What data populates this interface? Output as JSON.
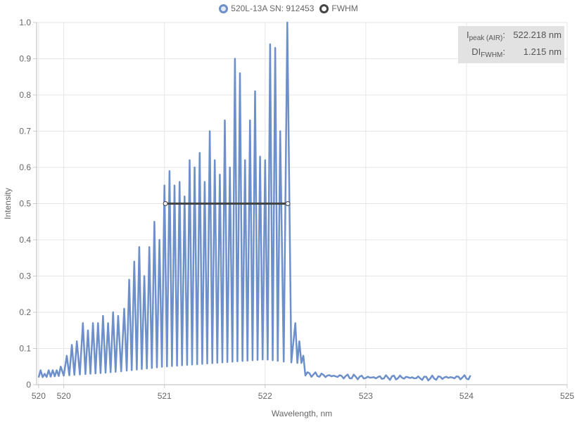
{
  "legend": {
    "series_label": "520L-13A SN: 912453",
    "fwhm_label": "FWHM"
  },
  "info": {
    "peak_key_main": "I",
    "peak_key_sub": "peak (AIR)",
    "peak_value": "522.218 nm",
    "fwhm_key_main": "DI",
    "fwhm_key_sub": "FWHM",
    "fwhm_value": "1.215 nm"
  },
  "colors": {
    "series": "#6d8fca",
    "fwhm": "#444444",
    "grid": "#e6e6e6",
    "info_bg": "#e2e2e2"
  },
  "chart_data": {
    "type": "line",
    "title": "",
    "xlabel": "Wavelength, nm",
    "ylabel": "Intensity",
    "xlim": [
      519.73,
      525
    ],
    "ylim": [
      0,
      1.0
    ],
    "x_ticks": [
      {
        "value": 519.75,
        "label": "520"
      },
      {
        "value": 520,
        "label": "520"
      },
      {
        "value": 521,
        "label": "521"
      },
      {
        "value": 522,
        "label": "522"
      },
      {
        "value": 523,
        "label": "523"
      },
      {
        "value": 524,
        "label": "524"
      },
      {
        "value": 525,
        "label": "525"
      }
    ],
    "y_ticks": [
      "0",
      "0.1",
      "0.2",
      "0.3",
      "0.4",
      "0.5",
      "0.6",
      "0.7",
      "0.8",
      "0.9",
      "1.0"
    ],
    "grid": true,
    "legend_position": "top",
    "series": [
      {
        "name": "520L-13A SN: 912453",
        "note": "oscillating spectrum; peak maxima listed as [wavelength_nm, intensity]",
        "baseline": [
          [
            519.75,
            0.02
          ],
          [
            520.5,
            0.035
          ],
          [
            521.0,
            0.05
          ],
          [
            521.5,
            0.06
          ],
          [
            522.0,
            0.07
          ],
          [
            522.3,
            0.06
          ]
        ],
        "peaks": [
          [
            519.77,
            0.04
          ],
          [
            519.81,
            0.03
          ],
          [
            519.85,
            0.04
          ],
          [
            519.89,
            0.04
          ],
          [
            519.93,
            0.04
          ],
          [
            519.97,
            0.05
          ],
          [
            520.03,
            0.08
          ],
          [
            520.08,
            0.11
          ],
          [
            520.13,
            0.12
          ],
          [
            520.19,
            0.17
          ],
          [
            520.24,
            0.15
          ],
          [
            520.29,
            0.17
          ],
          [
            520.34,
            0.17
          ],
          [
            520.39,
            0.19
          ],
          [
            520.44,
            0.17
          ],
          [
            520.49,
            0.2
          ],
          [
            520.54,
            0.19
          ],
          [
            520.6,
            0.21
          ],
          [
            520.65,
            0.29
          ],
          [
            520.7,
            0.34
          ],
          [
            520.75,
            0.38
          ],
          [
            520.8,
            0.3
          ],
          [
            520.85,
            0.38
          ],
          [
            520.9,
            0.45
          ],
          [
            520.95,
            0.4
          ],
          [
            521.0,
            0.55
          ],
          [
            521.05,
            0.59
          ],
          [
            521.1,
            0.55
          ],
          [
            521.15,
            0.56
          ],
          [
            521.2,
            0.52
          ],
          [
            521.25,
            0.62
          ],
          [
            521.3,
            0.6
          ],
          [
            521.35,
            0.64
          ],
          [
            521.4,
            0.56
          ],
          [
            521.45,
            0.7
          ],
          [
            521.5,
            0.62
          ],
          [
            521.55,
            0.58
          ],
          [
            521.6,
            0.73
          ],
          [
            521.65,
            0.6
          ],
          [
            521.7,
            0.9
          ],
          [
            521.75,
            0.86
          ],
          [
            521.8,
            0.62
          ],
          [
            521.85,
            0.73
          ],
          [
            521.9,
            0.81
          ],
          [
            521.95,
            0.63
          ],
          [
            522.0,
            0.62
          ],
          [
            522.05,
            0.94
          ],
          [
            522.1,
            0.93
          ],
          [
            522.15,
            0.7
          ],
          [
            522.22,
            1.0
          ],
          [
            522.3,
            0.17
          ],
          [
            522.34,
            0.12
          ],
          [
            522.38,
            0.08
          ]
        ],
        "tail": [
          [
            522.4,
            0.03
          ],
          [
            522.6,
            0.025
          ],
          [
            523.0,
            0.02
          ],
          [
            523.4,
            0.02
          ],
          [
            523.6,
            0.018
          ],
          [
            523.8,
            0.02
          ],
          [
            524.05,
            0.02
          ]
        ]
      },
      {
        "name": "FWHM",
        "points": [
          [
            521.01,
            0.5
          ],
          [
            522.225,
            0.5
          ]
        ]
      }
    ]
  }
}
